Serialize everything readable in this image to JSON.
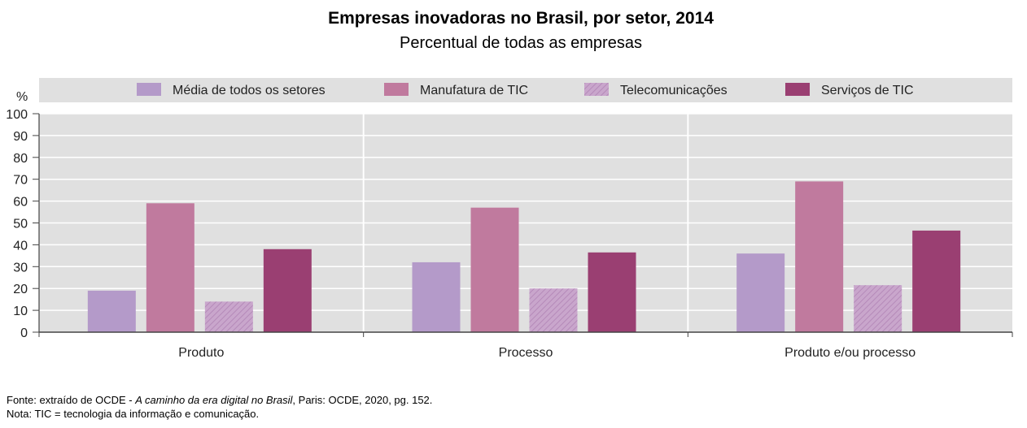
{
  "chart_data": {
    "type": "bar",
    "title": "Empresas inovadoras no Brasil, por setor, 2014",
    "subtitle": "Percentual de todas as empresas",
    "ylabel": "%",
    "xlabel": "",
    "ylim": [
      0,
      100
    ],
    "yticks": [
      0,
      10,
      20,
      30,
      40,
      50,
      60,
      70,
      80,
      90,
      100
    ],
    "grid": true,
    "legend_position": "top",
    "categories": [
      "Produto",
      "Processo",
      "Produto e/ou processo"
    ],
    "series": [
      {
        "name": "Média de todos os setores",
        "color": "#b49ac9",
        "pattern": "solid",
        "values": [
          19,
          32,
          36
        ]
      },
      {
        "name": "Manufatura de TIC",
        "color": "#c07a9e",
        "pattern": "solid",
        "values": [
          59,
          57,
          69
        ]
      },
      {
        "name": "Telecomunicações",
        "color": "#c39ac6",
        "pattern": "hatched",
        "values": [
          14,
          20,
          21.5
        ]
      },
      {
        "name": "Serviços de TIC",
        "color": "#9a3f72",
        "pattern": "solid",
        "values": [
          38,
          36.5,
          46.5
        ]
      }
    ]
  },
  "footer": {
    "source_prefix": "Fonte: extraído de OCDE - ",
    "source_title": "A caminho da era digital no Brasil",
    "source_suffix": ", Paris: OCDE, 2020,  pg. 152.",
    "note": "Nota: TIC = tecnologia da informação e comunicação."
  }
}
